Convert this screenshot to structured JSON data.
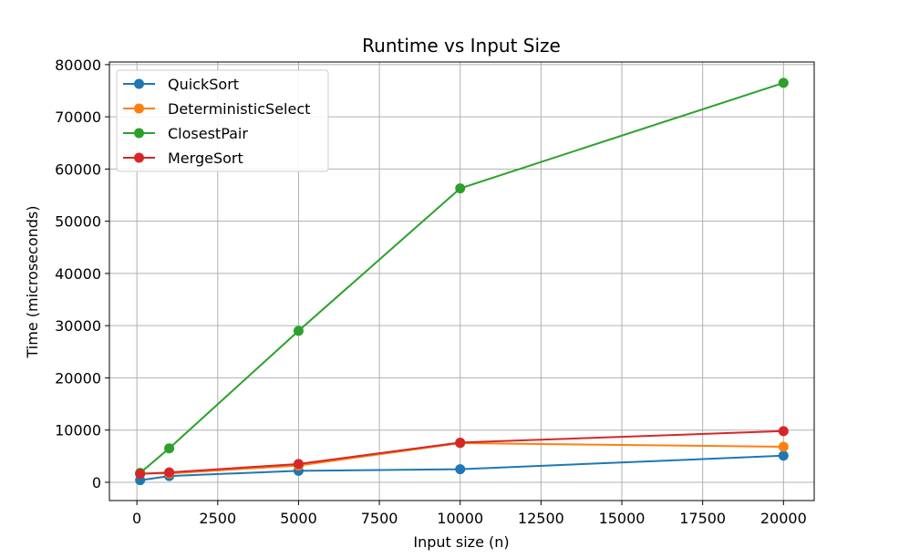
{
  "chart_data": {
    "type": "line",
    "title": "Runtime vs Input Size",
    "xlabel": "Input size (n)",
    "ylabel": "Time (microseconds)",
    "xlim": [
      -850,
      20950
    ],
    "ylim": [
      -3500,
      80500
    ],
    "x_ticks": [
      0,
      2500,
      5000,
      7500,
      10000,
      12500,
      15000,
      17500,
      20000
    ],
    "y_ticks": [
      0,
      10000,
      20000,
      30000,
      40000,
      50000,
      60000,
      70000,
      80000
    ],
    "grid": true,
    "legend_position": "top-left",
    "x": [
      100,
      1000,
      5000,
      10000,
      20000
    ],
    "series": [
      {
        "name": "QuickSort",
        "color": "#1f77b4",
        "values": [
          400,
          1200,
          2200,
          2500,
          5100
        ]
      },
      {
        "name": "DeterministicSelect",
        "color": "#ff7f0e",
        "values": [
          1700,
          1700,
          3200,
          7500,
          6800
        ]
      },
      {
        "name": "ClosestPair",
        "color": "#2ca02c",
        "values": [
          1800,
          6500,
          29000,
          56300,
          76500
        ]
      },
      {
        "name": "MergeSort",
        "color": "#d62728",
        "values": [
          1600,
          1900,
          3500,
          7600,
          9800
        ]
      }
    ]
  }
}
